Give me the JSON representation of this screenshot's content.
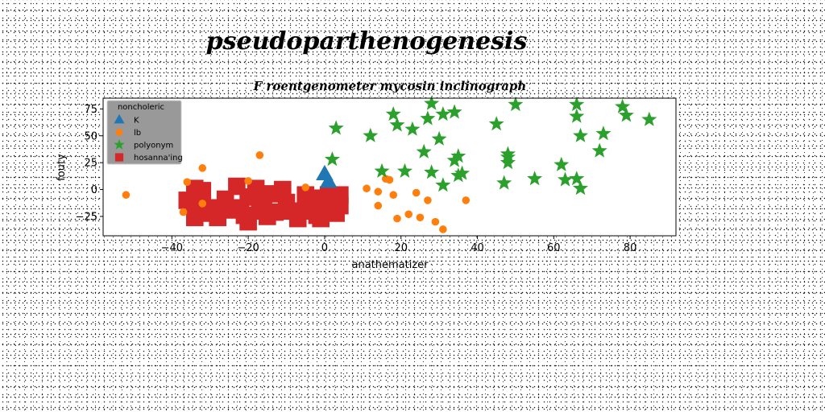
{
  "suptitle": "pseudoparthenogenesis",
  "chart_data": {
    "type": "scatter",
    "title": "F roentgenometer mycosin inclinograph",
    "xlabel": "anathematizer",
    "ylabel": "fouty",
    "xlim": [
      -58,
      92
    ],
    "ylim": [
      -43,
      85
    ],
    "xticks": [
      -40,
      -20,
      0,
      20,
      40,
      60,
      80
    ],
    "yticks": [
      -25,
      0,
      25,
      50,
      75
    ],
    "grid": false,
    "legend": {
      "title": "noncholeric",
      "placement": "top-left"
    },
    "series": [
      {
        "name": "K",
        "marker": "triangle",
        "color": "#1f77b4",
        "points": [
          [
            0,
            14
          ],
          [
            1,
            7
          ]
        ]
      },
      {
        "name": "lb",
        "marker": "circle",
        "color": "#ff7f0e",
        "points": [
          [
            -52,
            -5
          ],
          [
            -36,
            7
          ],
          [
            -32,
            20
          ],
          [
            -37,
            -21
          ],
          [
            -32,
            -13
          ],
          [
            -20,
            8
          ],
          [
            -17,
            32
          ],
          [
            -5,
            2
          ],
          [
            11,
            1
          ],
          [
            14,
            -15
          ],
          [
            14,
            -2
          ],
          [
            16,
            10
          ],
          [
            17,
            9
          ],
          [
            18,
            -5
          ],
          [
            19,
            -27
          ],
          [
            22,
            -23
          ],
          [
            24,
            -3
          ],
          [
            25,
            -26
          ],
          [
            27,
            -10
          ],
          [
            29,
            -30
          ],
          [
            31,
            -37
          ],
          [
            37,
            -10
          ]
        ]
      },
      {
        "name": "polyonym",
        "marker": "star",
        "color": "#2ca02c",
        "points": [
          [
            2,
            28
          ],
          [
            3,
            57
          ],
          [
            12,
            50
          ],
          [
            15,
            17
          ],
          [
            18,
            70
          ],
          [
            19,
            60
          ],
          [
            21,
            17
          ],
          [
            23,
            56
          ],
          [
            26,
            35
          ],
          [
            27,
            66
          ],
          [
            28,
            16
          ],
          [
            28,
            80
          ],
          [
            30,
            47
          ],
          [
            31,
            4
          ],
          [
            31,
            70
          ],
          [
            34,
            72
          ],
          [
            34,
            27
          ],
          [
            35,
            13
          ],
          [
            35,
            31
          ],
          [
            36,
            15
          ],
          [
            45,
            61
          ],
          [
            47,
            6
          ],
          [
            48,
            33
          ],
          [
            48,
            25
          ],
          [
            48,
            30
          ],
          [
            50,
            79
          ],
          [
            55,
            10
          ],
          [
            62,
            23
          ],
          [
            63,
            9
          ],
          [
            66,
            10
          ],
          [
            66,
            79
          ],
          [
            66,
            68
          ],
          [
            67,
            1
          ],
          [
            67,
            50
          ],
          [
            72,
            36
          ],
          [
            73,
            52
          ],
          [
            78,
            77
          ],
          [
            79,
            69
          ],
          [
            85,
            65
          ]
        ]
      },
      {
        "name": "hosanna'ing",
        "marker": "square",
        "color": "#d62728",
        "points": [
          [
            -34,
            1
          ],
          [
            -32,
            -1
          ],
          [
            -36,
            -10
          ],
          [
            -33,
            -13
          ],
          [
            -34,
            -26
          ],
          [
            -31,
            -22
          ],
          [
            -29,
            -17
          ],
          [
            -28,
            -26
          ],
          [
            -26,
            -9
          ],
          [
            -25,
            -19
          ],
          [
            -23,
            3
          ],
          [
            -22,
            -17
          ],
          [
            -21,
            -24
          ],
          [
            -20,
            -7
          ],
          [
            -20,
            -30
          ],
          [
            -18,
            1
          ],
          [
            -17,
            -20
          ],
          [
            -16,
            -11
          ],
          [
            -15,
            -25
          ],
          [
            -14,
            -4
          ],
          [
            -13,
            -21
          ],
          [
            -11,
            0
          ],
          [
            -10,
            -12
          ],
          [
            -9,
            -20
          ],
          [
            -7,
            -27
          ],
          [
            -5,
            -5
          ],
          [
            -5,
            -20
          ],
          [
            -3,
            -8
          ],
          [
            -2,
            -24
          ],
          [
            -1,
            -14
          ],
          [
            -1,
            -27
          ],
          [
            1,
            -5
          ],
          [
            2,
            -19
          ],
          [
            3,
            -22
          ],
          [
            4,
            -5
          ],
          [
            4,
            -15
          ]
        ]
      }
    ]
  }
}
